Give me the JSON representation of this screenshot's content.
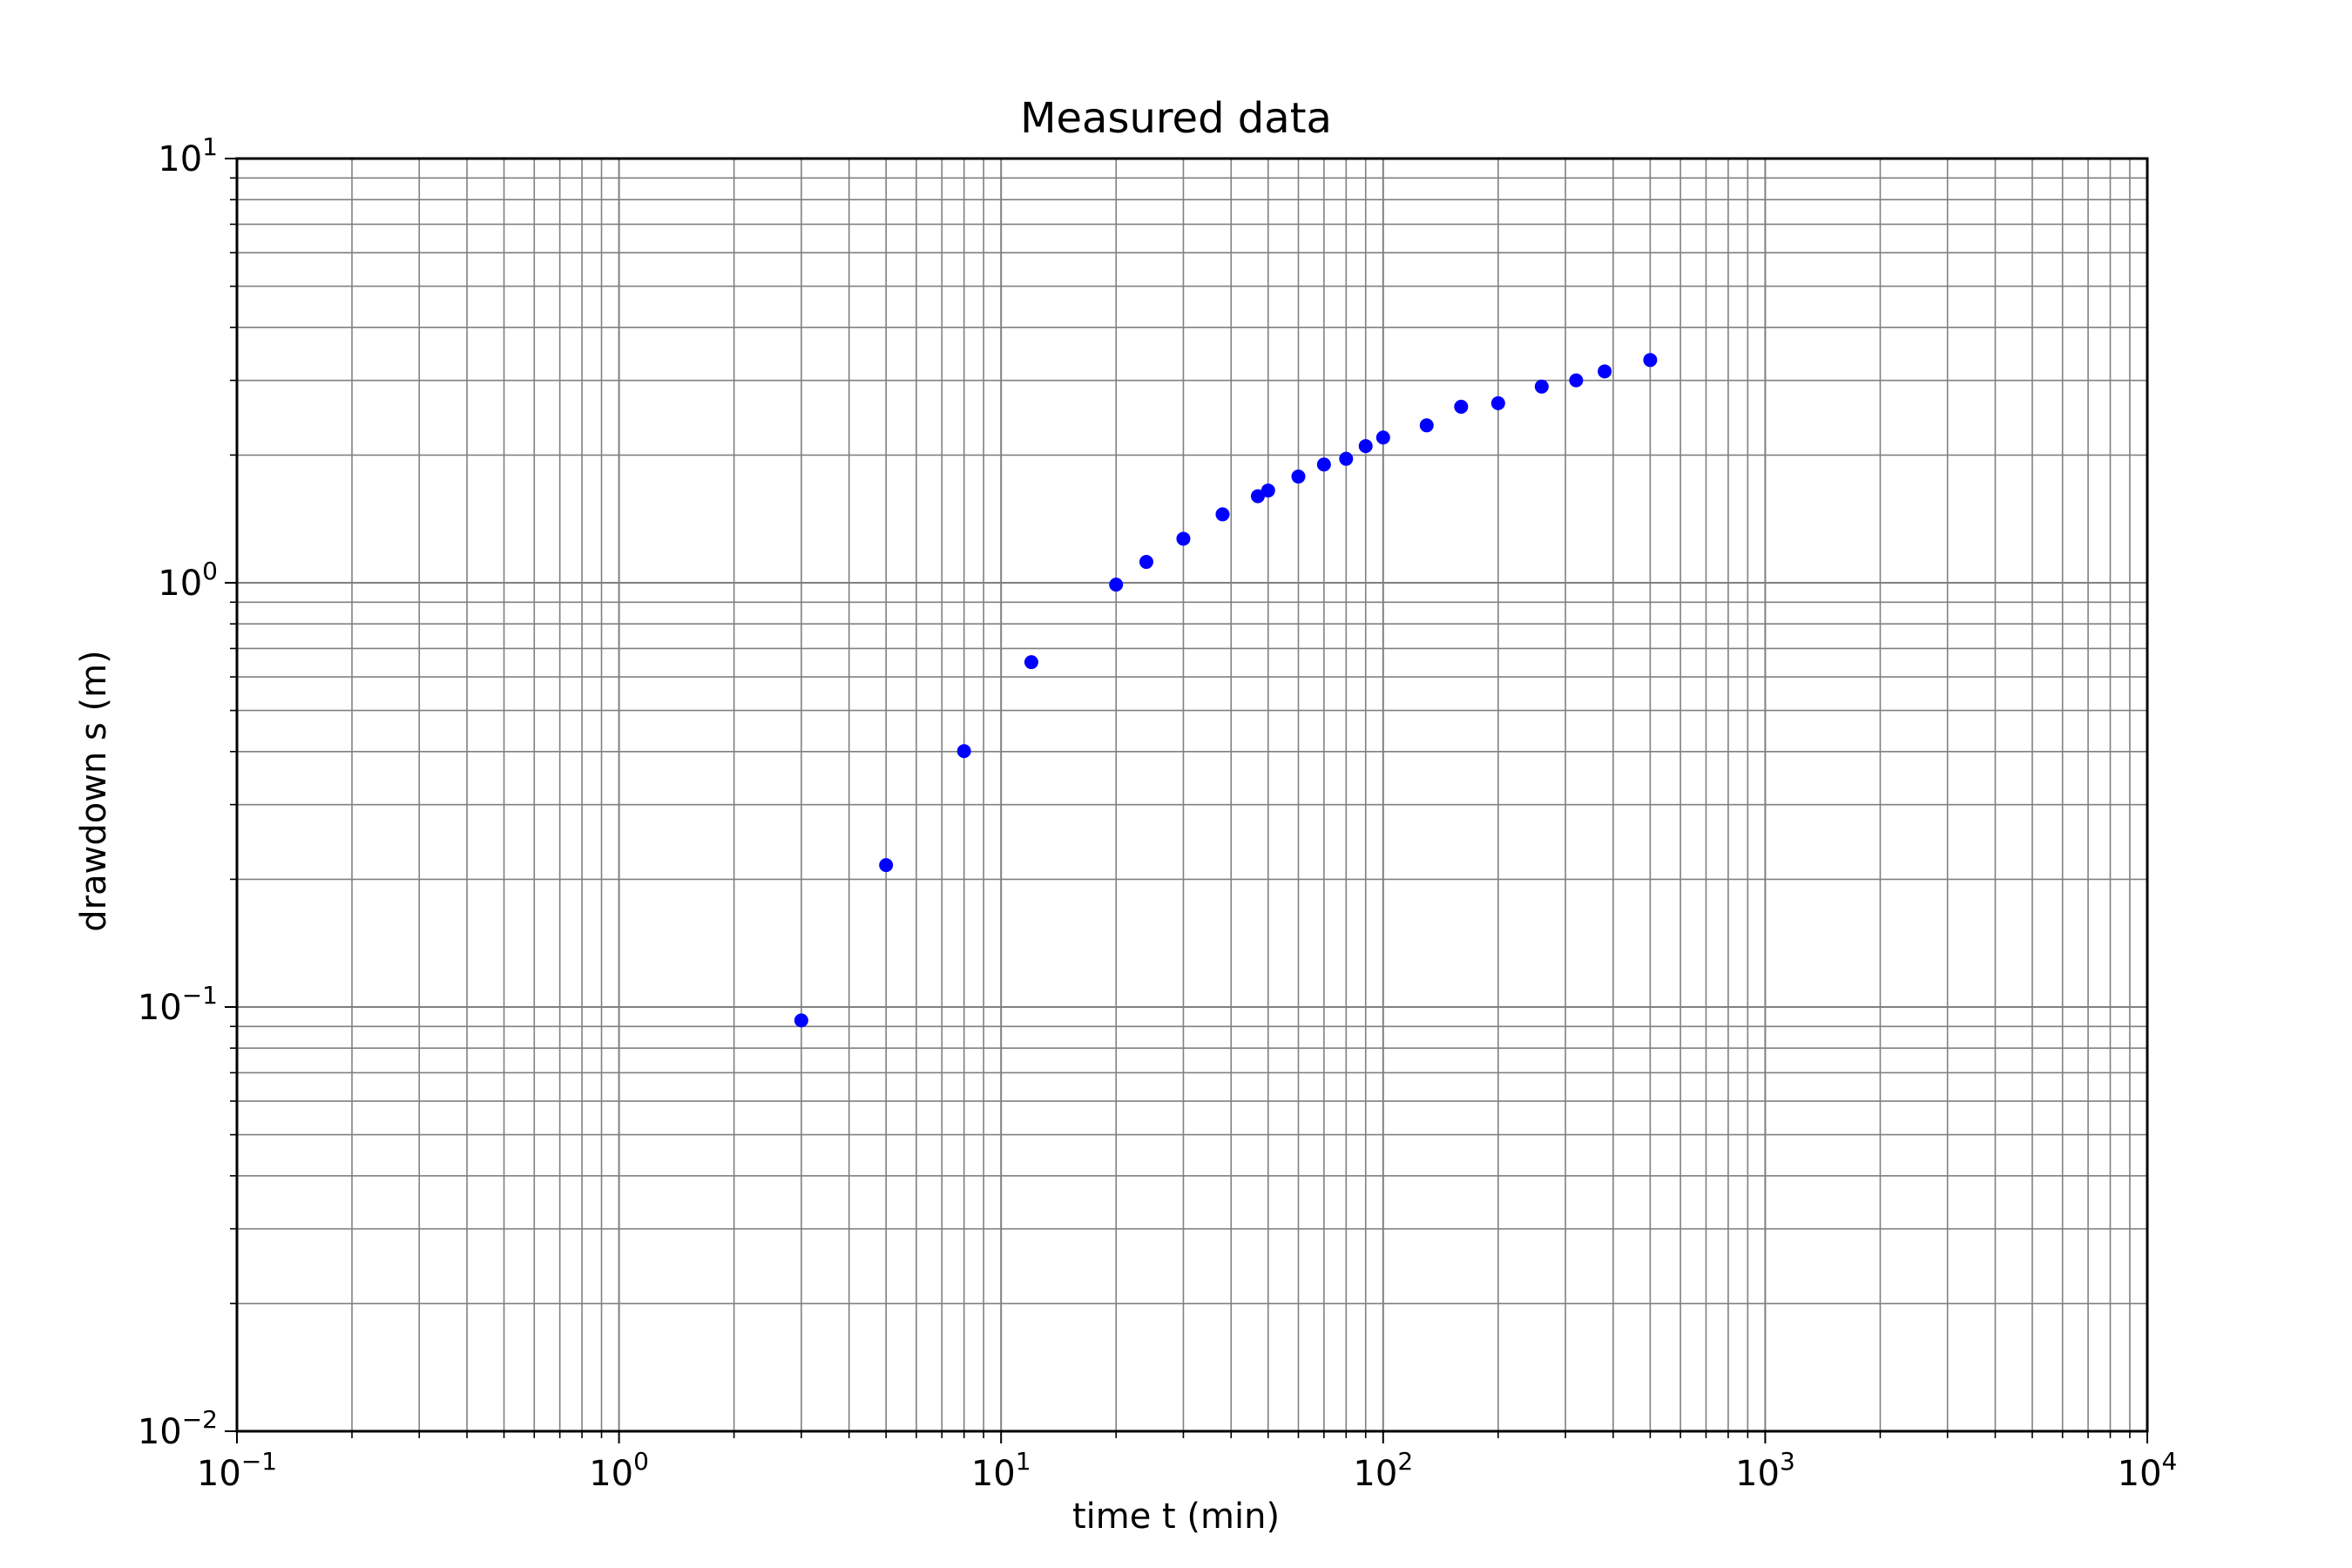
{
  "chart_data": {
    "type": "scatter",
    "title": "Measured data",
    "xlabel": "time t (min)",
    "ylabel": "drawdown s (m)",
    "xscale": "log",
    "yscale": "log",
    "xlim": [
      0.1,
      10000
    ],
    "ylim": [
      0.01,
      10
    ],
    "grid": "major and minor",
    "marker_color": "#0000ff",
    "grid_color": "#808080",
    "x_ticks": [
      {
        "base": "10",
        "exp": "−1"
      },
      {
        "base": "10",
        "exp": "0"
      },
      {
        "base": "10",
        "exp": "1"
      },
      {
        "base": "10",
        "exp": "2"
      },
      {
        "base": "10",
        "exp": "3"
      },
      {
        "base": "10",
        "exp": "4"
      }
    ],
    "y_ticks": [
      {
        "base": "10",
        "exp": "−2"
      },
      {
        "base": "10",
        "exp": "−1"
      },
      {
        "base": "10",
        "exp": "0"
      },
      {
        "base": "10",
        "exp": "1"
      }
    ],
    "x": [
      3,
      5,
      8,
      12,
      20,
      24,
      30,
      38,
      47,
      50,
      60,
      70,
      80,
      90,
      100,
      130,
      160,
      200,
      260,
      320,
      380,
      500
    ],
    "y": [
      0.093,
      0.216,
      0.401,
      0.65,
      0.99,
      1.12,
      1.27,
      1.45,
      1.6,
      1.65,
      1.78,
      1.9,
      1.96,
      2.1,
      2.2,
      2.35,
      2.6,
      2.65,
      2.9,
      3.0,
      3.15,
      3.35
    ]
  }
}
